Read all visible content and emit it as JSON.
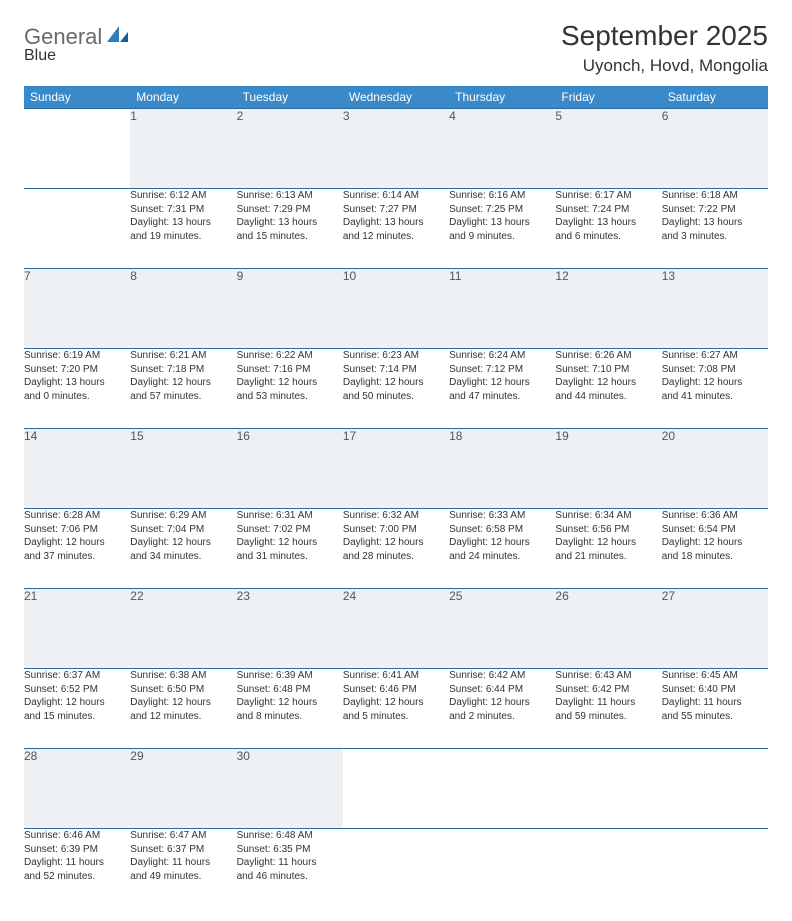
{
  "logo": {
    "word1": "General",
    "word2": "Blue"
  },
  "title": {
    "month": "September 2025",
    "location": "Uyonch, Hovd, Mongolia"
  },
  "colors": {
    "header_bg": "#3a89c9",
    "header_text": "#ffffff",
    "rule": "#2a6aa0",
    "daynum_bg": "#eef1f3",
    "body_text": "#333333",
    "logo_gray": "#6a6a6a",
    "logo_blue": "#2f7dbb"
  },
  "weekdays": [
    "Sunday",
    "Monday",
    "Tuesday",
    "Wednesday",
    "Thursday",
    "Friday",
    "Saturday"
  ],
  "weeks": [
    {
      "nums": [
        "",
        "1",
        "2",
        "3",
        "4",
        "5",
        "6"
      ],
      "cells": [
        {
          "empty": true
        },
        {
          "sunrise": "Sunrise: 6:12 AM",
          "sunset": "Sunset: 7:31 PM",
          "d1": "Daylight: 13 hours",
          "d2": "and 19 minutes."
        },
        {
          "sunrise": "Sunrise: 6:13 AM",
          "sunset": "Sunset: 7:29 PM",
          "d1": "Daylight: 13 hours",
          "d2": "and 15 minutes."
        },
        {
          "sunrise": "Sunrise: 6:14 AM",
          "sunset": "Sunset: 7:27 PM",
          "d1": "Daylight: 13 hours",
          "d2": "and 12 minutes."
        },
        {
          "sunrise": "Sunrise: 6:16 AM",
          "sunset": "Sunset: 7:25 PM",
          "d1": "Daylight: 13 hours",
          "d2": "and 9 minutes."
        },
        {
          "sunrise": "Sunrise: 6:17 AM",
          "sunset": "Sunset: 7:24 PM",
          "d1": "Daylight: 13 hours",
          "d2": "and 6 minutes."
        },
        {
          "sunrise": "Sunrise: 6:18 AM",
          "sunset": "Sunset: 7:22 PM",
          "d1": "Daylight: 13 hours",
          "d2": "and 3 minutes."
        }
      ]
    },
    {
      "nums": [
        "7",
        "8",
        "9",
        "10",
        "11",
        "12",
        "13"
      ],
      "cells": [
        {
          "sunrise": "Sunrise: 6:19 AM",
          "sunset": "Sunset: 7:20 PM",
          "d1": "Daylight: 13 hours",
          "d2": "and 0 minutes."
        },
        {
          "sunrise": "Sunrise: 6:21 AM",
          "sunset": "Sunset: 7:18 PM",
          "d1": "Daylight: 12 hours",
          "d2": "and 57 minutes."
        },
        {
          "sunrise": "Sunrise: 6:22 AM",
          "sunset": "Sunset: 7:16 PM",
          "d1": "Daylight: 12 hours",
          "d2": "and 53 minutes."
        },
        {
          "sunrise": "Sunrise: 6:23 AM",
          "sunset": "Sunset: 7:14 PM",
          "d1": "Daylight: 12 hours",
          "d2": "and 50 minutes."
        },
        {
          "sunrise": "Sunrise: 6:24 AM",
          "sunset": "Sunset: 7:12 PM",
          "d1": "Daylight: 12 hours",
          "d2": "and 47 minutes."
        },
        {
          "sunrise": "Sunrise: 6:26 AM",
          "sunset": "Sunset: 7:10 PM",
          "d1": "Daylight: 12 hours",
          "d2": "and 44 minutes."
        },
        {
          "sunrise": "Sunrise: 6:27 AM",
          "sunset": "Sunset: 7:08 PM",
          "d1": "Daylight: 12 hours",
          "d2": "and 41 minutes."
        }
      ]
    },
    {
      "nums": [
        "14",
        "15",
        "16",
        "17",
        "18",
        "19",
        "20"
      ],
      "cells": [
        {
          "sunrise": "Sunrise: 6:28 AM",
          "sunset": "Sunset: 7:06 PM",
          "d1": "Daylight: 12 hours",
          "d2": "and 37 minutes."
        },
        {
          "sunrise": "Sunrise: 6:29 AM",
          "sunset": "Sunset: 7:04 PM",
          "d1": "Daylight: 12 hours",
          "d2": "and 34 minutes."
        },
        {
          "sunrise": "Sunrise: 6:31 AM",
          "sunset": "Sunset: 7:02 PM",
          "d1": "Daylight: 12 hours",
          "d2": "and 31 minutes."
        },
        {
          "sunrise": "Sunrise: 6:32 AM",
          "sunset": "Sunset: 7:00 PM",
          "d1": "Daylight: 12 hours",
          "d2": "and 28 minutes."
        },
        {
          "sunrise": "Sunrise: 6:33 AM",
          "sunset": "Sunset: 6:58 PM",
          "d1": "Daylight: 12 hours",
          "d2": "and 24 minutes."
        },
        {
          "sunrise": "Sunrise: 6:34 AM",
          "sunset": "Sunset: 6:56 PM",
          "d1": "Daylight: 12 hours",
          "d2": "and 21 minutes."
        },
        {
          "sunrise": "Sunrise: 6:36 AM",
          "sunset": "Sunset: 6:54 PM",
          "d1": "Daylight: 12 hours",
          "d2": "and 18 minutes."
        }
      ]
    },
    {
      "nums": [
        "21",
        "22",
        "23",
        "24",
        "25",
        "26",
        "27"
      ],
      "cells": [
        {
          "sunrise": "Sunrise: 6:37 AM",
          "sunset": "Sunset: 6:52 PM",
          "d1": "Daylight: 12 hours",
          "d2": "and 15 minutes."
        },
        {
          "sunrise": "Sunrise: 6:38 AM",
          "sunset": "Sunset: 6:50 PM",
          "d1": "Daylight: 12 hours",
          "d2": "and 12 minutes."
        },
        {
          "sunrise": "Sunrise: 6:39 AM",
          "sunset": "Sunset: 6:48 PM",
          "d1": "Daylight: 12 hours",
          "d2": "and 8 minutes."
        },
        {
          "sunrise": "Sunrise: 6:41 AM",
          "sunset": "Sunset: 6:46 PM",
          "d1": "Daylight: 12 hours",
          "d2": "and 5 minutes."
        },
        {
          "sunrise": "Sunrise: 6:42 AM",
          "sunset": "Sunset: 6:44 PM",
          "d1": "Daylight: 12 hours",
          "d2": "and 2 minutes."
        },
        {
          "sunrise": "Sunrise: 6:43 AM",
          "sunset": "Sunset: 6:42 PM",
          "d1": "Daylight: 11 hours",
          "d2": "and 59 minutes."
        },
        {
          "sunrise": "Sunrise: 6:45 AM",
          "sunset": "Sunset: 6:40 PM",
          "d1": "Daylight: 11 hours",
          "d2": "and 55 minutes."
        }
      ]
    },
    {
      "nums": [
        "28",
        "29",
        "30",
        "",
        "",
        "",
        ""
      ],
      "cells": [
        {
          "sunrise": "Sunrise: 6:46 AM",
          "sunset": "Sunset: 6:39 PM",
          "d1": "Daylight: 11 hours",
          "d2": "and 52 minutes."
        },
        {
          "sunrise": "Sunrise: 6:47 AM",
          "sunset": "Sunset: 6:37 PM",
          "d1": "Daylight: 11 hours",
          "d2": "and 49 minutes."
        },
        {
          "sunrise": "Sunrise: 6:48 AM",
          "sunset": "Sunset: 6:35 PM",
          "d1": "Daylight: 11 hours",
          "d2": "and 46 minutes."
        },
        {
          "empty": true
        },
        {
          "empty": true
        },
        {
          "empty": true
        },
        {
          "empty": true
        }
      ]
    }
  ]
}
